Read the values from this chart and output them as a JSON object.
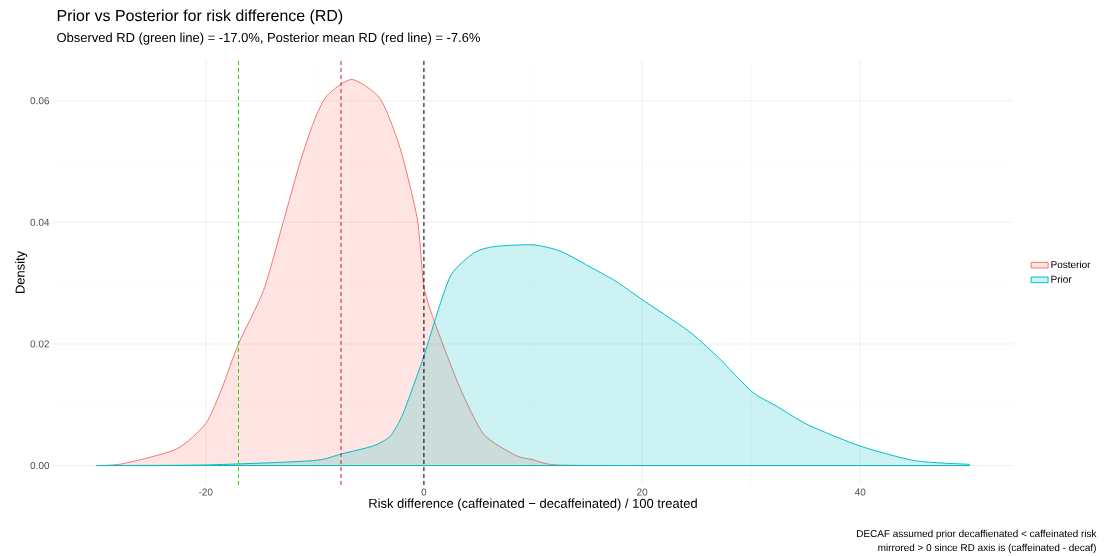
{
  "chart_data": {
    "type": "area",
    "title": "Prior vs Posterior for risk difference (RD)",
    "subtitle": "Observed RD (green line) = -17.0%, Posterior mean RD (red line) = -7.6%",
    "xlabel": "Risk difference (caffeinated − decaffeinated) / 100 treated",
    "ylabel": "Density",
    "annotations": [
      "DECAF assumed prior decaffienated < caffeinated risk",
      "mirrored > 0 since RD axis is (caffeinated - decaf)"
    ],
    "series": [
      {
        "name": "Posterior",
        "color": "#f8766d",
        "x": [
          -30,
          -27.6,
          -22.7,
          -20,
          -18.5,
          -17,
          -14.7,
          -12.9,
          -11.4,
          -10.1,
          -8.9,
          -6.6,
          -4,
          -2.2,
          -0.6,
          0,
          1.1,
          3.3,
          5.5,
          8.5,
          9.9,
          12.1,
          20,
          30,
          40,
          50
        ],
        "values": [
          0,
          0.0003,
          0.0027,
          0.0069,
          0.0128,
          0.02,
          0.0288,
          0.04,
          0.0496,
          0.0565,
          0.0608,
          0.0635,
          0.0603,
          0.0523,
          0.0405,
          0.0294,
          0.023,
          0.0128,
          0.0051,
          0.0016,
          0.001,
          0.0001,
          0,
          0,
          0,
          0
        ]
      },
      {
        "name": "Prior",
        "color": "#00bfc4",
        "x": [
          -30,
          -20,
          -10.2,
          -7.6,
          -4.7,
          -3.1,
          -1.9,
          0,
          1.1,
          2.5,
          4.6,
          6.4,
          10,
          12.6,
          15.5,
          17.7,
          20,
          24.2,
          26.8,
          30.1,
          32.3,
          35.2,
          40,
          45,
          50
        ],
        "values": [
          0,
          0.0001,
          0.0008,
          0.0019,
          0.0032,
          0.0048,
          0.0086,
          0.018,
          0.0244,
          0.0314,
          0.035,
          0.036,
          0.0363,
          0.0352,
          0.0324,
          0.0302,
          0.0273,
          0.0222,
          0.0181,
          0.0121,
          0.0098,
          0.0067,
          0.0032,
          0.0008,
          0.0002
        ]
      }
    ],
    "xlim": [
      -34,
      54
    ],
    "ylim": [
      -0.0032,
      0.0667
    ],
    "xticks": [
      -20,
      0,
      20,
      40
    ],
    "yticks": [
      {
        "value": 0,
        "label": "0.00"
      },
      0.02,
      0.04,
      0.06
    ],
    "ref_lines": [
      {
        "axis": "x",
        "value": -17,
        "color": "#33cc11",
        "line_style": "dashed"
      },
      {
        "axis": "x",
        "value": -7.6,
        "color": "#b5263a",
        "line_style": "dashed"
      },
      {
        "axis": "x",
        "value": 0,
        "color": "#000000",
        "line_style": "dashed"
      }
    ],
    "grid": true,
    "legend": "right"
  }
}
